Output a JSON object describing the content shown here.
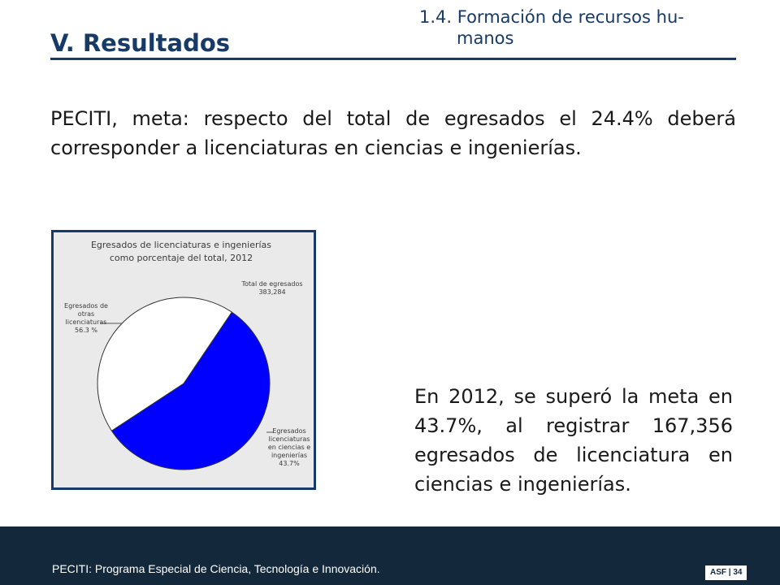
{
  "header": {
    "title": "V. Resultados",
    "section_line1": "1.4. Formación de recursos hu-",
    "section_line2": "manos"
  },
  "intro": "PECITI, meta: respecto del total de egresados el 24.4% deberá corresponder a licenciaturas en ciencias e ingenierías.",
  "conclusion": "En 2012, se superó la meta en 43.7%, al registrar 167,356 egresados de licenciatura en ciencias e ingenierías.",
  "footer": {
    "note": "PECITI: Programa Especial de Ciencia, Tecnología e Innovación.",
    "page": "ASF | 34"
  },
  "chart_data": {
    "type": "pie",
    "title_line1": "Egresados de licenciaturas e ingenierías",
    "title_line2": "como porcentaje del total, 2012",
    "total_label_line1": "Total de egresados",
    "total_label_line2": "383,284",
    "slices": [
      {
        "label_lines": [
          "Egresados de",
          "otras",
          "licenciaturas",
          "56.3 %"
        ],
        "value": 56.3,
        "color": "#0000ff"
      },
      {
        "label_lines": [
          "Egresados",
          "licenciaturas",
          "en ciencias e",
          "ingenierías",
          "43.7%"
        ],
        "value": 43.7,
        "color": "#ffffff"
      }
    ]
  }
}
